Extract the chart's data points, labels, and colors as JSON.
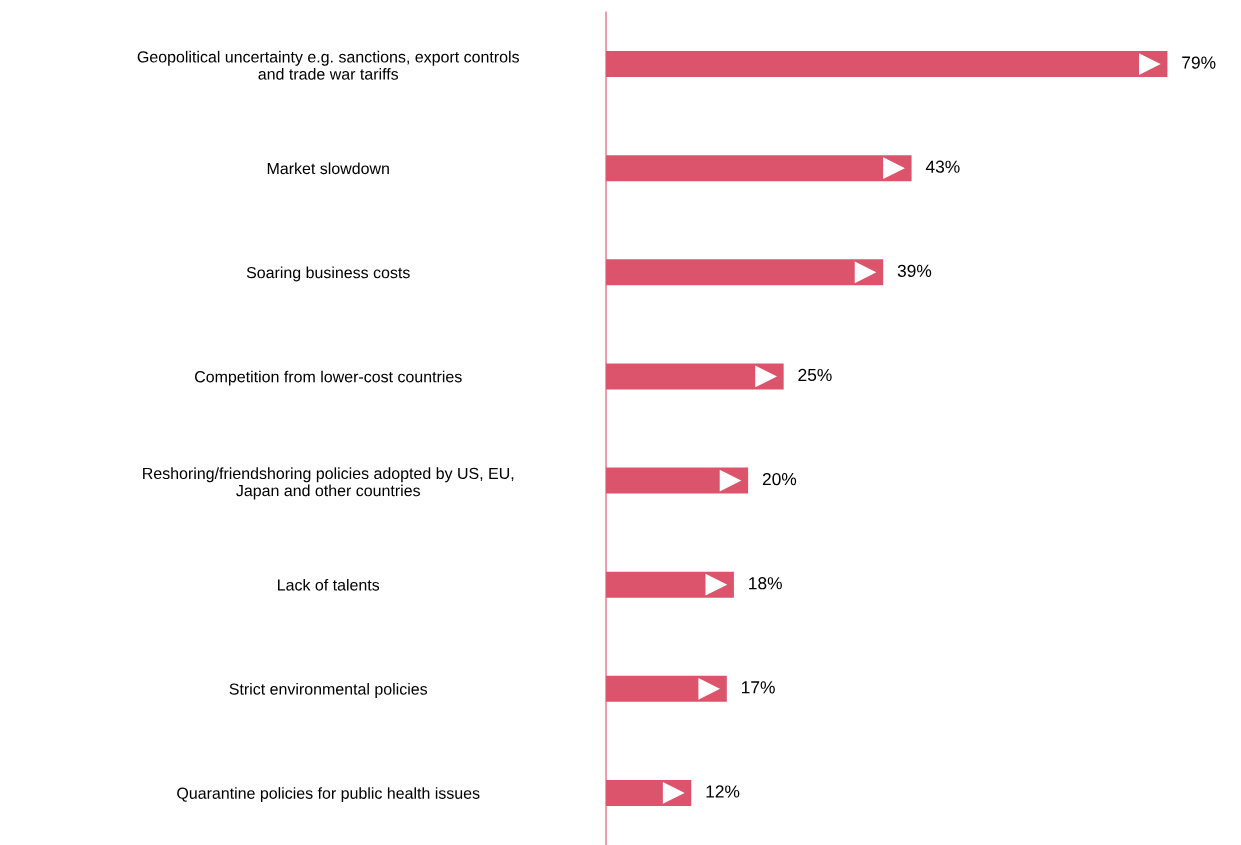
{
  "chart_data": {
    "type": "bar",
    "orientation": "horizontal",
    "categories": [
      "Geopolitical uncertainty e.g. sanctions, export controls\nand trade war tariffs",
      "Market slowdown",
      "Soaring business costs",
      "Competition from lower-cost countries",
      "Reshoring/friendshoring policies adopted by US, EU,\nJapan and other countries",
      "Lack of talents",
      "Strict environmental policies",
      "Quarantine policies for public health issues"
    ],
    "values": [
      79,
      43,
      39,
      25,
      20,
      18,
      17,
      12
    ],
    "value_labels": [
      "79%",
      "43%",
      "39%",
      "25%",
      "20%",
      "18%",
      "17%",
      "12%"
    ],
    "color": "#dc546c",
    "grid": false,
    "legend": false,
    "tick_labels": "y"
  }
}
